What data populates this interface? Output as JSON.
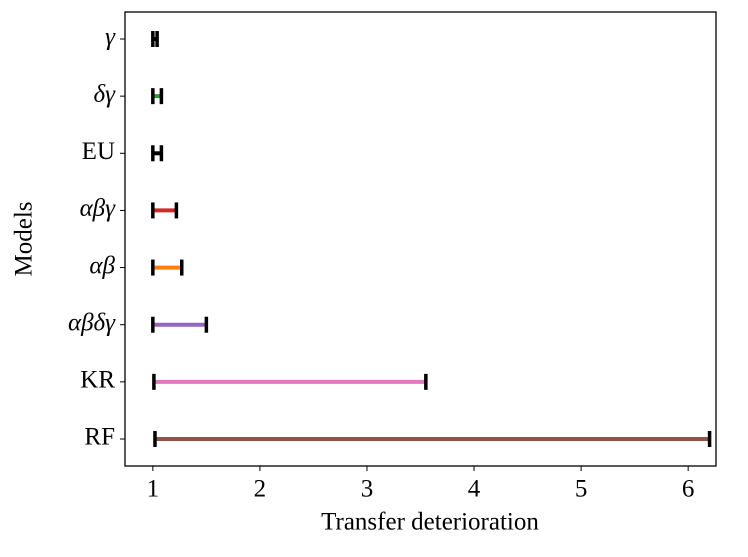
{
  "chart_data": {
    "type": "range",
    "xlabel": "Transfer deterioration",
    "ylabel": "Models",
    "categories": [
      "γ",
      "δγ",
      "EU",
      "αβγ",
      "αβ",
      "αβδγ",
      "KR",
      "RF"
    ],
    "ranges": [
      [
        1.0,
        1.04
      ],
      [
        1.0,
        1.08
      ],
      [
        1.0,
        1.08
      ],
      [
        1.0,
        1.22
      ],
      [
        1.0,
        1.27
      ],
      [
        1.0,
        1.5
      ],
      [
        1.01,
        3.55
      ],
      [
        1.02,
        6.2
      ]
    ],
    "colors": [
      "#000000",
      "#2ca02c",
      "#000000",
      "#d62728",
      "#ff7f0e",
      "#9467bd",
      "#e377c2",
      "#8c564b"
    ],
    "cap_color": "#000000",
    "xlim": [
      0.74,
      6.26
    ],
    "xticks": [
      1,
      2,
      3,
      4,
      5,
      6
    ]
  }
}
